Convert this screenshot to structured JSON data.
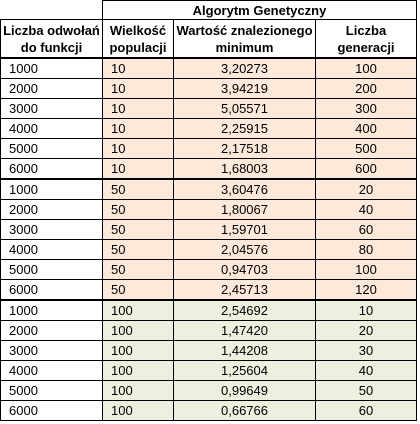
{
  "table": {
    "group_title": "Algorytm Genetyczny",
    "headers": {
      "calls": "Liczba odwołań do funkcji",
      "population": "Wielkość populacji",
      "minimum": "Wartość znalezionego minimum",
      "generations": "Liczba generacji"
    },
    "colors": {
      "group1": "#fde9d9",
      "group2": "#fde9d9",
      "group3": "#ebf1de"
    },
    "rows": [
      {
        "calls": "1000",
        "population": "10",
        "minimum": "3,20273",
        "generations": "100"
      },
      {
        "calls": "2000",
        "population": "10",
        "minimum": "3,94219",
        "generations": "200"
      },
      {
        "calls": "3000",
        "population": "10",
        "minimum": "5,05571",
        "generations": "300"
      },
      {
        "calls": "4000",
        "population": "10",
        "minimum": "2,25915",
        "generations": "400"
      },
      {
        "calls": "5000",
        "population": "10",
        "minimum": "2,17518",
        "generations": "500"
      },
      {
        "calls": "6000",
        "population": "10",
        "minimum": "1,68003",
        "generations": "600"
      },
      {
        "calls": "1000",
        "population": "50",
        "minimum": "3,60476",
        "generations": "20"
      },
      {
        "calls": "2000",
        "population": "50",
        "minimum": "1,80067",
        "generations": "40"
      },
      {
        "calls": "3000",
        "population": "50",
        "minimum": "1,59701",
        "generations": "60"
      },
      {
        "calls": "4000",
        "population": "50",
        "minimum": "2,04576",
        "generations": "80"
      },
      {
        "calls": "5000",
        "population": "50",
        "minimum": "0,94703",
        "generations": "100"
      },
      {
        "calls": "6000",
        "population": "50",
        "minimum": "2,45713",
        "generations": "120"
      },
      {
        "calls": "1000",
        "population": "100",
        "minimum": "2,54692",
        "generations": "10"
      },
      {
        "calls": "2000",
        "population": "100",
        "minimum": "1,47420",
        "generations": "20"
      },
      {
        "calls": "3000",
        "population": "100",
        "minimum": "1,44208",
        "generations": "30"
      },
      {
        "calls": "4000",
        "population": "100",
        "minimum": "1,25604",
        "generations": "40"
      },
      {
        "calls": "5000",
        "population": "100",
        "minimum": "0,99649",
        "generations": "50"
      },
      {
        "calls": "6000",
        "population": "100",
        "minimum": "0,66766",
        "generations": "60"
      }
    ]
  }
}
